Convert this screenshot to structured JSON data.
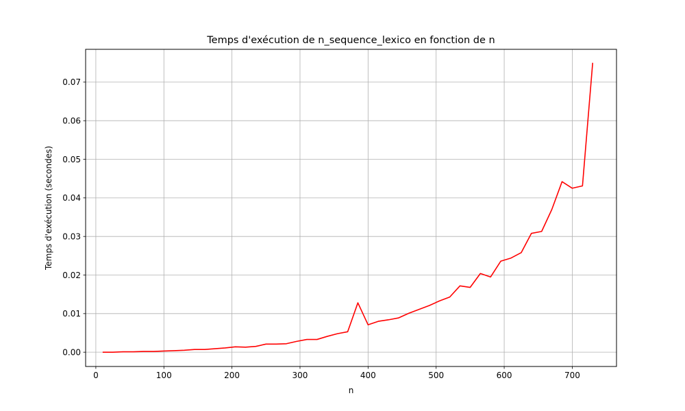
{
  "chart_data": {
    "type": "line",
    "title": "Temps d'exécution de n_sequence_lexico en fonction de n",
    "xlabel": "n",
    "ylabel": "Temps d'exécution (secondes)",
    "xlim": [
      -15,
      765
    ],
    "ylim": [
      -0.0037,
      0.0785
    ],
    "xticks": [
      0,
      100,
      200,
      300,
      400,
      500,
      600,
      700
    ],
    "yticks": [
      0.0,
      0.01,
      0.02,
      0.03,
      0.04,
      0.05,
      0.06,
      0.07
    ],
    "ytick_labels": [
      "0.00",
      "0.01",
      "0.02",
      "0.03",
      "0.04",
      "0.05",
      "0.06",
      "0.07"
    ],
    "grid": true,
    "series": [
      {
        "color": "#ff0000",
        "x": [
          10,
          25,
          40,
          55,
          70,
          85,
          100,
          115,
          130,
          145,
          160,
          175,
          190,
          205,
          220,
          235,
          250,
          265,
          280,
          295,
          310,
          325,
          340,
          355,
          370,
          385,
          400,
          415,
          430,
          445,
          460,
          475,
          490,
          505,
          520,
          535,
          550,
          565,
          580,
          595,
          610,
          625,
          640,
          655,
          670,
          685,
          700,
          715,
          730
        ],
        "y": [
          0.0,
          0.0,
          0.0001,
          0.0001,
          0.0002,
          0.0002,
          0.0003,
          0.0004,
          0.0005,
          0.0007,
          0.0007,
          0.0009,
          0.0011,
          0.0014,
          0.0013,
          0.0015,
          0.0021,
          0.0021,
          0.0022,
          0.0028,
          0.0033,
          0.0033,
          0.0041,
          0.0048,
          0.0053,
          0.0128,
          0.0071,
          0.008,
          0.0084,
          0.0089,
          0.0101,
          0.0111,
          0.0121,
          0.0133,
          0.0143,
          0.0172,
          0.0168,
          0.0204,
          0.0195,
          0.0236,
          0.0244,
          0.0258,
          0.0308,
          0.0313,
          0.037,
          0.0442,
          0.0425,
          0.0431,
          0.075
        ]
      }
    ]
  }
}
